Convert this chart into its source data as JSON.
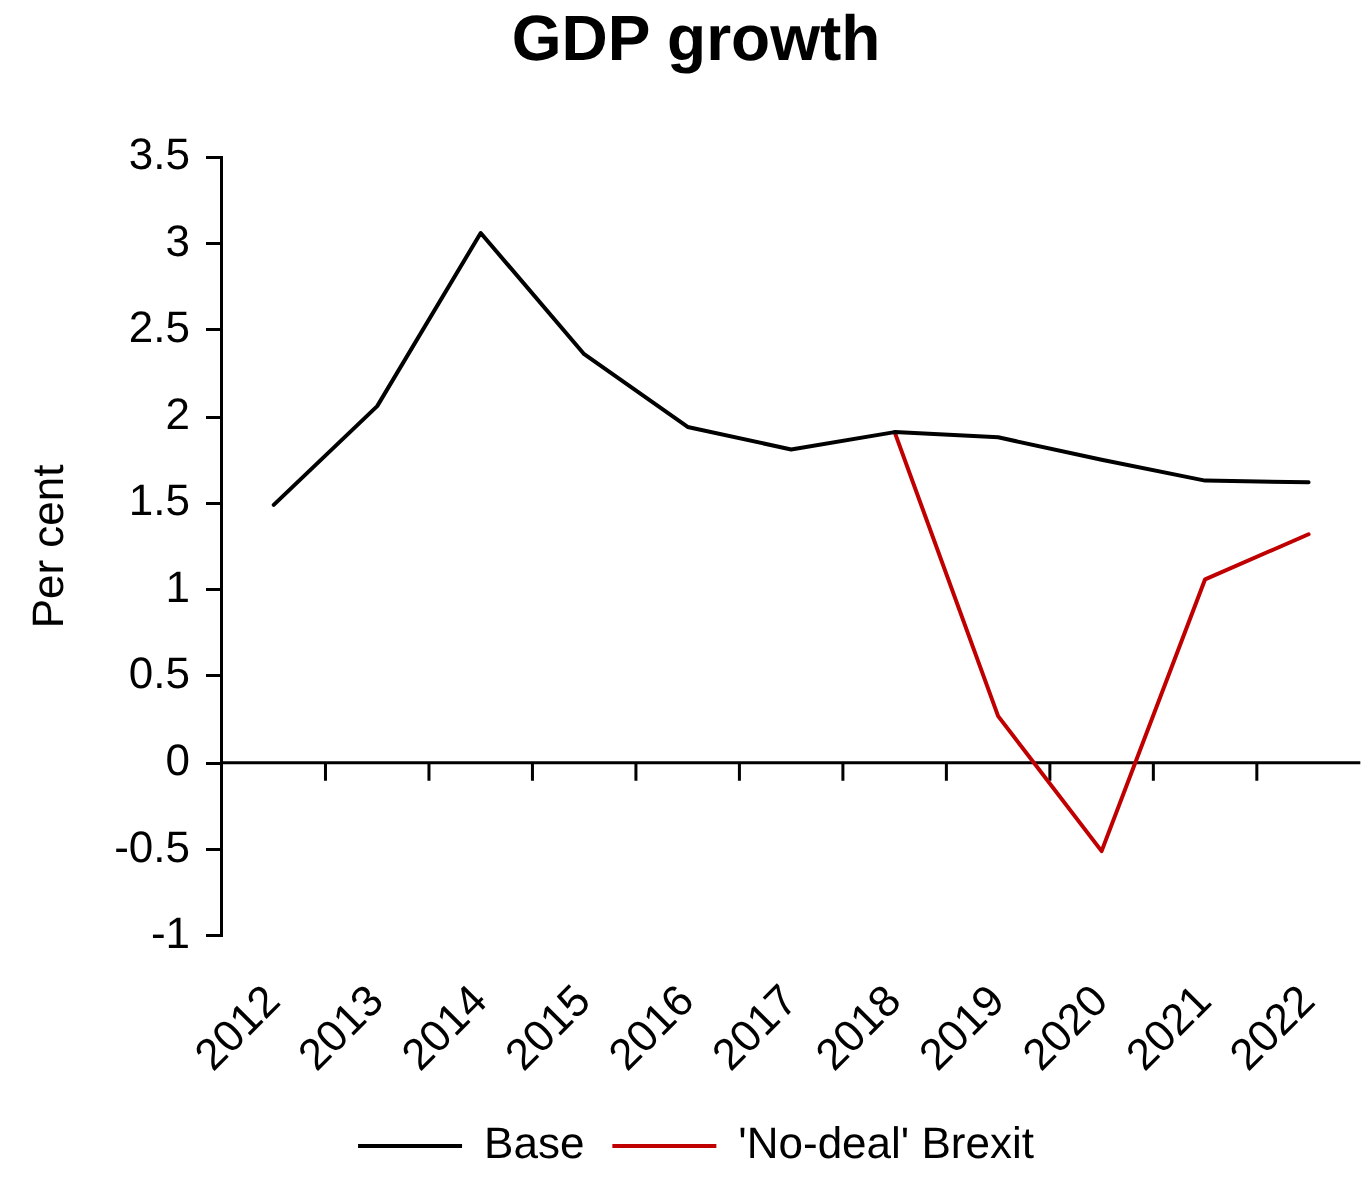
{
  "chart_data": {
    "type": "line",
    "title": "GDP growth",
    "ylabel": "Per cent",
    "categories": [
      "2012",
      "2013",
      "2014",
      "2015",
      "2016",
      "2017",
      "2018",
      "2019",
      "2020",
      "2021",
      "2022"
    ],
    "series": [
      {
        "name": "Base",
        "color": "#000000",
        "values": [
          1.49,
          2.06,
          3.06,
          2.36,
          1.94,
          1.81,
          1.91,
          1.88,
          1.75,
          1.63,
          1.62
        ]
      },
      {
        "name": "'No-deal' Brexit",
        "color": "#c00000",
        "values": [
          null,
          null,
          null,
          null,
          null,
          null,
          1.91,
          0.27,
          -0.51,
          1.06,
          1.32
        ]
      }
    ],
    "ylim": [
      -1,
      3.5
    ],
    "yticks": [
      -1,
      -0.5,
      0,
      0.5,
      1,
      1.5,
      2,
      2.5,
      3,
      3.5
    ],
    "legend": "bottom",
    "marker": "none",
    "line_style": "solid"
  }
}
